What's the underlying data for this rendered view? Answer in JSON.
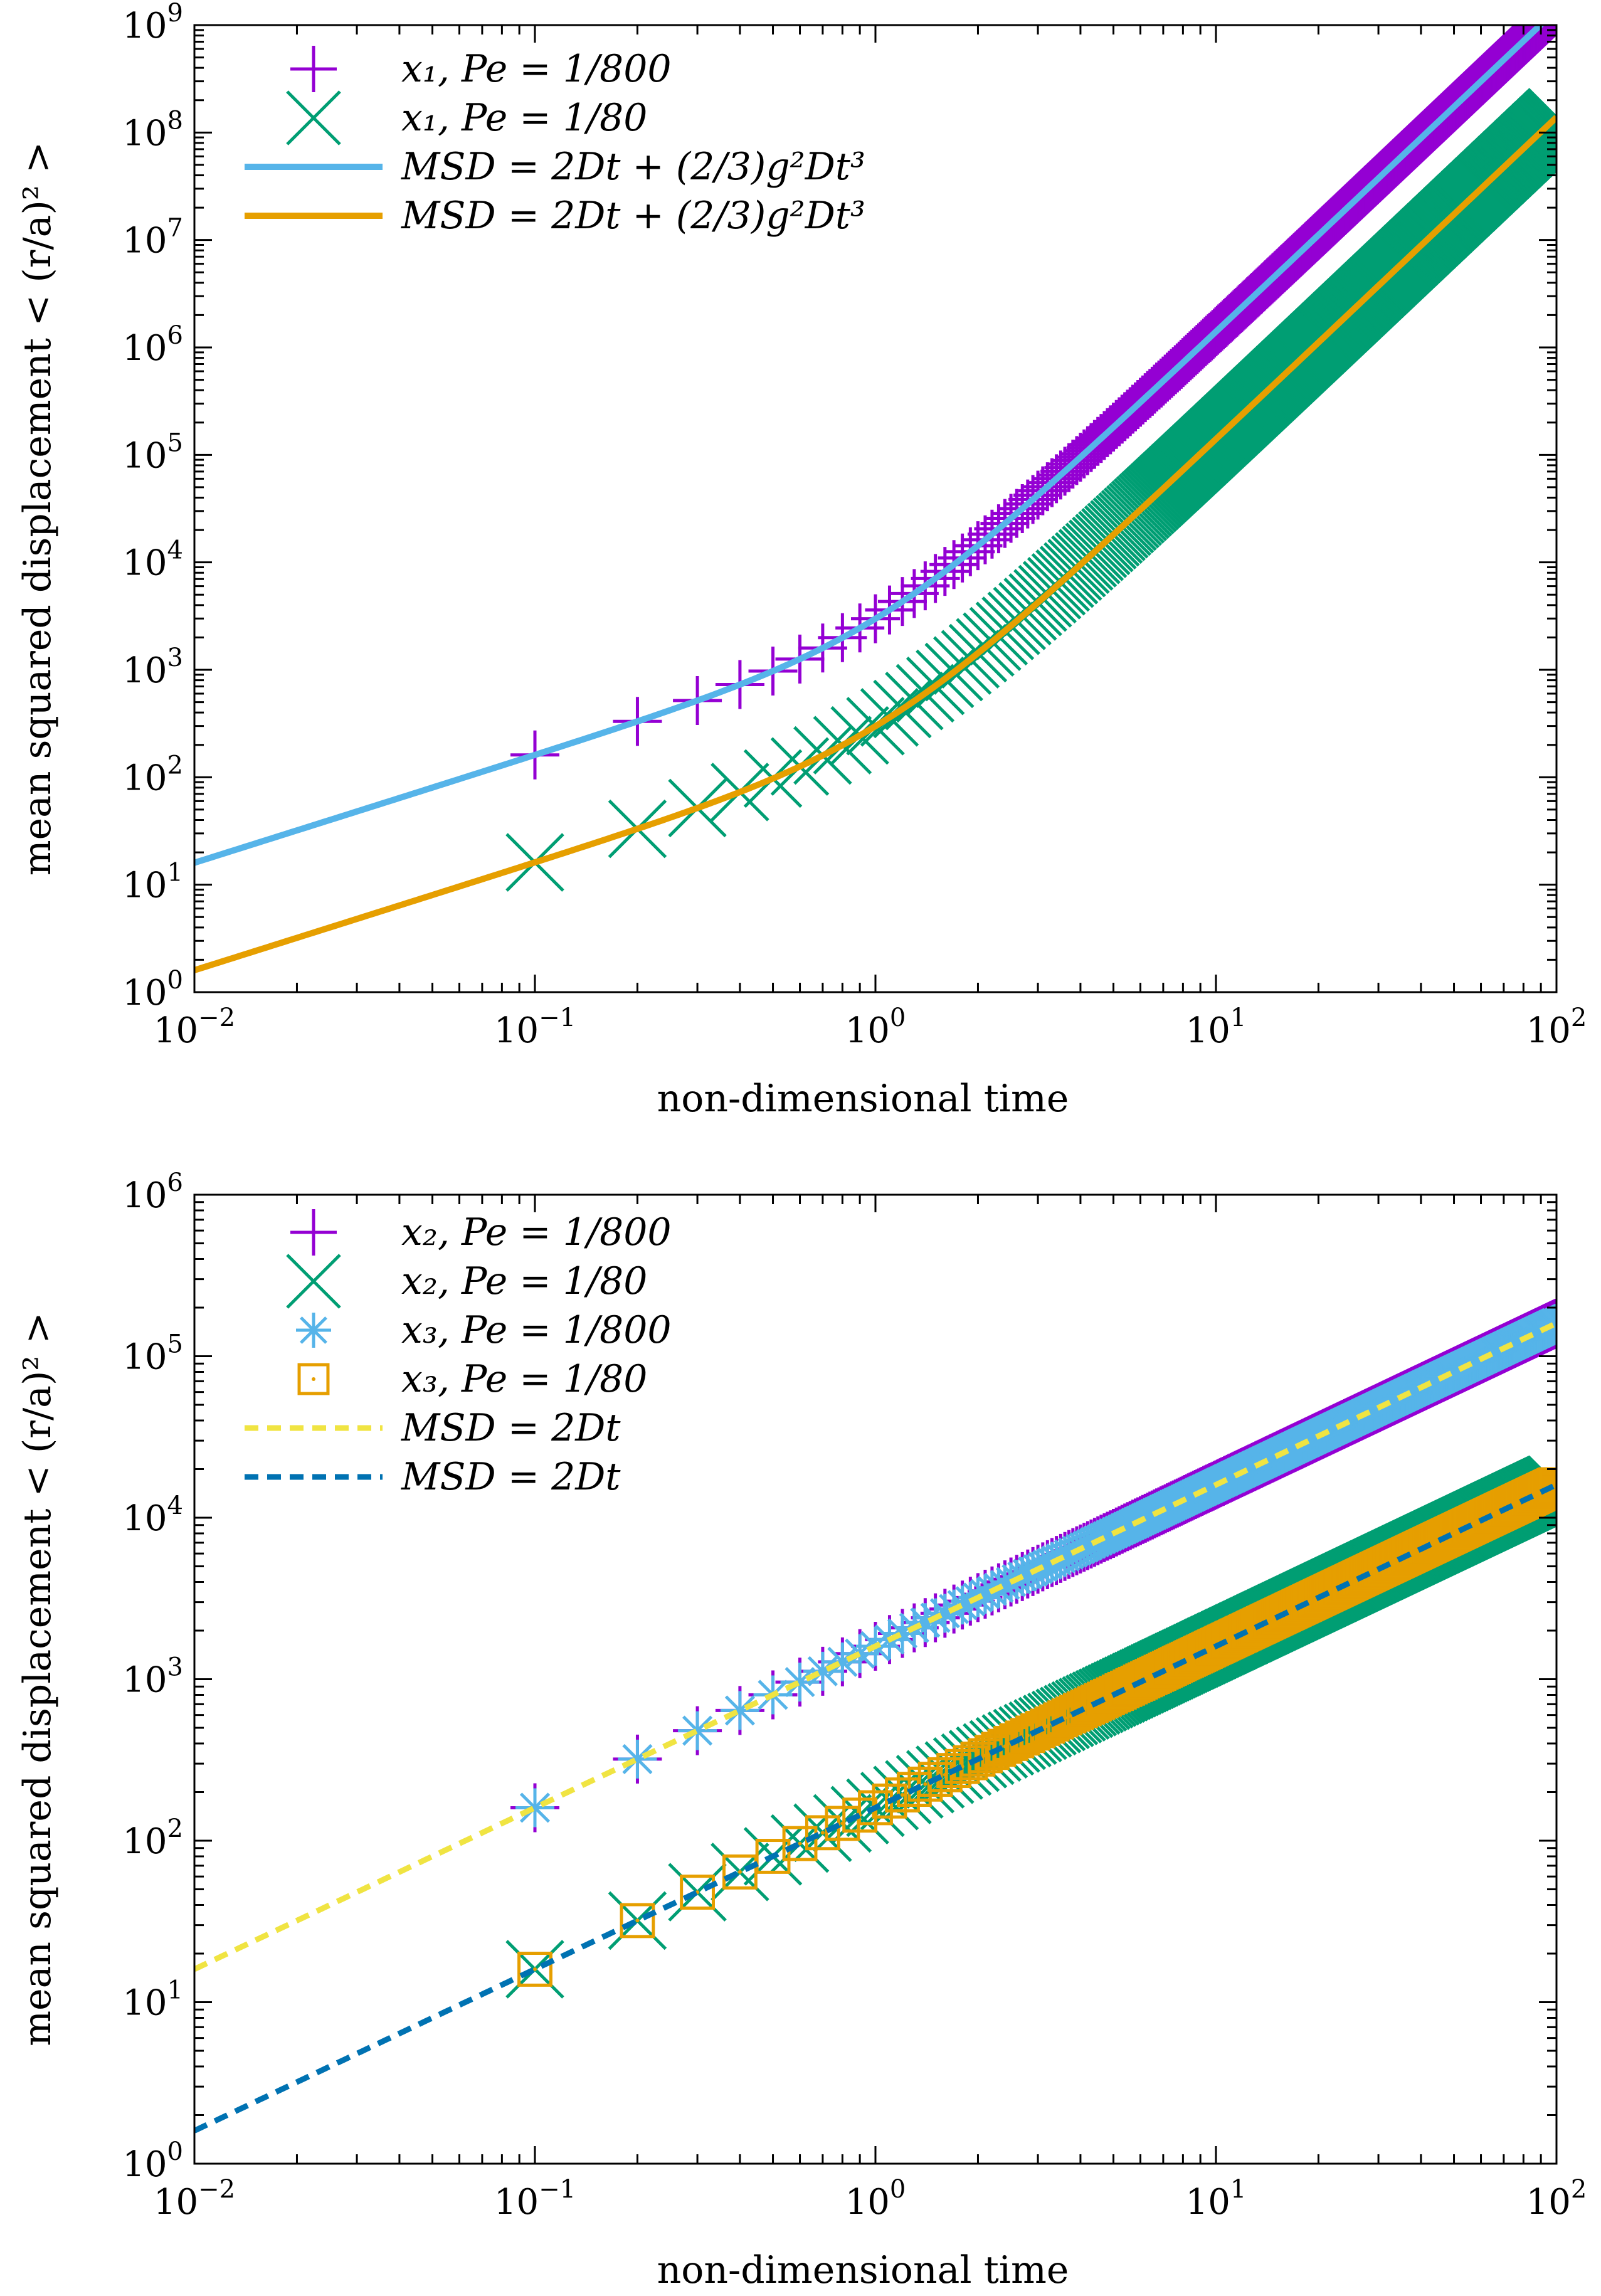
{
  "colors": {
    "purple": "#9400d3",
    "green": "#009e73",
    "skyblue": "#56b4e9",
    "orange": "#e69f00",
    "yellow": "#f0e442",
    "darkblue": "#0072b2"
  },
  "chart_data": [
    {
      "type": "scatter",
      "log_x": true,
      "log_y": true,
      "xlabel": "non-dimensional time",
      "ylabel": "mean squared displacement < (r/a)² >",
      "xlim": [
        0.01,
        100
      ],
      "ylim": [
        1,
        1000000000
      ],
      "x_tick_labels": [
        {
          "value": 0.01,
          "base": "10",
          "exp": "−2"
        },
        {
          "value": 0.1,
          "base": "10",
          "exp": "−1"
        },
        {
          "value": 1,
          "base": "10",
          "exp": "0"
        },
        {
          "value": 10,
          "base": "10",
          "exp": "1"
        },
        {
          "value": 100,
          "base": "10",
          "exp": "2"
        }
      ],
      "y_tick_labels": [
        {
          "value": 1,
          "base": "10",
          "exp": "0"
        },
        {
          "value": 10,
          "base": "10",
          "exp": "1"
        },
        {
          "value": 100,
          "base": "10",
          "exp": "2"
        },
        {
          "value": 1000,
          "base": "10",
          "exp": "3"
        },
        {
          "value": 10000,
          "base": "10",
          "exp": "4"
        },
        {
          "value": 100000,
          "base": "10",
          "exp": "5"
        },
        {
          "value": 1000000,
          "base": "10",
          "exp": "6"
        },
        {
          "value": 10000000,
          "base": "10",
          "exp": "7"
        },
        {
          "value": 100000000,
          "base": "10",
          "exp": "8"
        },
        {
          "value": 1000000000,
          "base": "10",
          "exp": "9"
        }
      ],
      "legend_position": "top-left",
      "series": [
        {
          "name": "x₁, Pe = 1/800",
          "marker": "plus",
          "color": "#9400d3",
          "model": "ballistic",
          "D": 800,
          "g2": 2.6,
          "x_range": [
            0.1,
            100
          ],
          "step": 0.1
        },
        {
          "name": "x₁, Pe = 1/80",
          "marker": "cross",
          "color": "#009e73",
          "model": "ballistic",
          "D": 80,
          "g2": 2.6,
          "x_range": [
            0.1,
            100
          ],
          "step": 0.1
        },
        {
          "name": "MSD = 2Dt + (2/3)g²Dt³",
          "marker": "line",
          "color": "#56b4e9",
          "model": "ballistic",
          "D": 800,
          "g2": 2.6,
          "x_range": [
            0.01,
            100
          ]
        },
        {
          "name": "MSD = 2Dt + (2/3)g²Dt³",
          "marker": "line",
          "color": "#e69f00",
          "model": "ballistic",
          "D": 80,
          "g2": 2.6,
          "x_range": [
            0.01,
            100
          ]
        }
      ]
    },
    {
      "type": "scatter",
      "log_x": true,
      "log_y": true,
      "xlabel": "non-dimensional time",
      "ylabel": "mean squared displacement < (r/a)² >",
      "xlim": [
        0.01,
        100
      ],
      "ylim": [
        1,
        1000000
      ],
      "x_tick_labels": [
        {
          "value": 0.01,
          "base": "10",
          "exp": "−2"
        },
        {
          "value": 0.1,
          "base": "10",
          "exp": "−1"
        },
        {
          "value": 1,
          "base": "10",
          "exp": "0"
        },
        {
          "value": 10,
          "base": "10",
          "exp": "1"
        },
        {
          "value": 100,
          "base": "10",
          "exp": "2"
        }
      ],
      "y_tick_labels": [
        {
          "value": 1,
          "base": "10",
          "exp": "0"
        },
        {
          "value": 10,
          "base": "10",
          "exp": "1"
        },
        {
          "value": 100,
          "base": "10",
          "exp": "2"
        },
        {
          "value": 1000,
          "base": "10",
          "exp": "3"
        },
        {
          "value": 10000,
          "base": "10",
          "exp": "4"
        },
        {
          "value": 100000,
          "base": "10",
          "exp": "5"
        },
        {
          "value": 1000000,
          "base": "10",
          "exp": "6"
        }
      ],
      "legend_position": "top-left",
      "series": [
        {
          "name": "x₂, Pe = 1/800",
          "marker": "plus",
          "color": "#9400d3",
          "model": "diffusive",
          "D": 800,
          "x_range": [
            0.1,
            100
          ],
          "step": 0.1
        },
        {
          "name": "x₂, Pe = 1/80",
          "marker": "cross",
          "color": "#009e73",
          "model": "diffusive",
          "D": 80,
          "x_range": [
            0.1,
            100
          ],
          "step": 0.1
        },
        {
          "name": "x₃, Pe = 1/800",
          "marker": "star",
          "color": "#56b4e9",
          "model": "diffusive",
          "D": 800,
          "x_range": [
            0.1,
            100
          ],
          "step": 0.1
        },
        {
          "name": "x₃, Pe = 1/80",
          "marker": "square",
          "color": "#e69f00",
          "model": "diffusive",
          "D": 80,
          "x_range": [
            0.1,
            100
          ],
          "step": 0.1
        },
        {
          "name": "MSD = 2Dt",
          "marker": "dashed",
          "color": "#f0e442",
          "model": "diffusive",
          "D": 800,
          "x_range": [
            0.01,
            100
          ]
        },
        {
          "name": "MSD = 2Dt",
          "marker": "dashed",
          "color": "#0072b2",
          "model": "diffusive",
          "D": 80,
          "x_range": [
            0.01,
            100
          ]
        }
      ]
    }
  ]
}
